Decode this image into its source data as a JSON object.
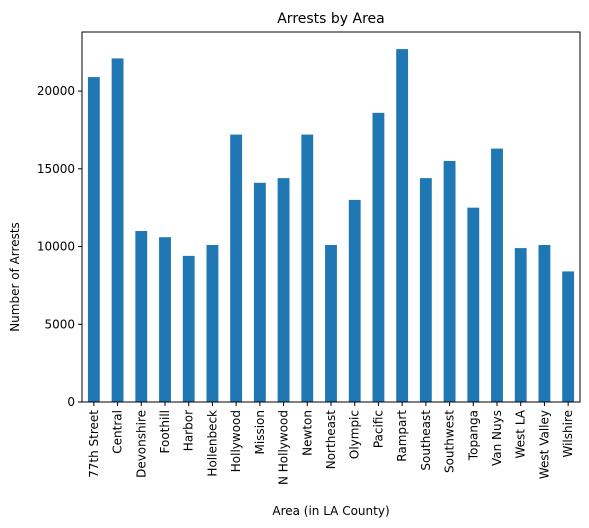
{
  "chart_data": {
    "type": "bar",
    "title": "Arrests by Area",
    "xlabel": "Area (in LA County)",
    "ylabel": "Number of Arrests",
    "categories": [
      "77th Street",
      "Central",
      "Devonshire",
      "Foothill",
      "Harbor",
      "Hollenbeck",
      "Hollywood",
      "Mission",
      "N Hollywood",
      "Newton",
      "Northeast",
      "Olympic",
      "Pacific",
      "Rampart",
      "Southeast",
      "Southwest",
      "Topanga",
      "Van Nuys",
      "West LA",
      "West Valley",
      "Wilshire"
    ],
    "values": [
      20900,
      22100,
      11000,
      10600,
      9400,
      10100,
      17200,
      14100,
      14400,
      17200,
      10100,
      13000,
      18600,
      22700,
      14400,
      15500,
      12500,
      16300,
      9900,
      10100,
      8400
    ],
    "ylim": [
      0,
      23800
    ],
    "yticks": [
      0,
      5000,
      10000,
      15000,
      20000
    ],
    "ytick_labels": [
      "0",
      "5000",
      "10000",
      "15000",
      "20000"
    ],
    "bar_color": "#1f77b4",
    "grid": false,
    "legend": "none"
  }
}
